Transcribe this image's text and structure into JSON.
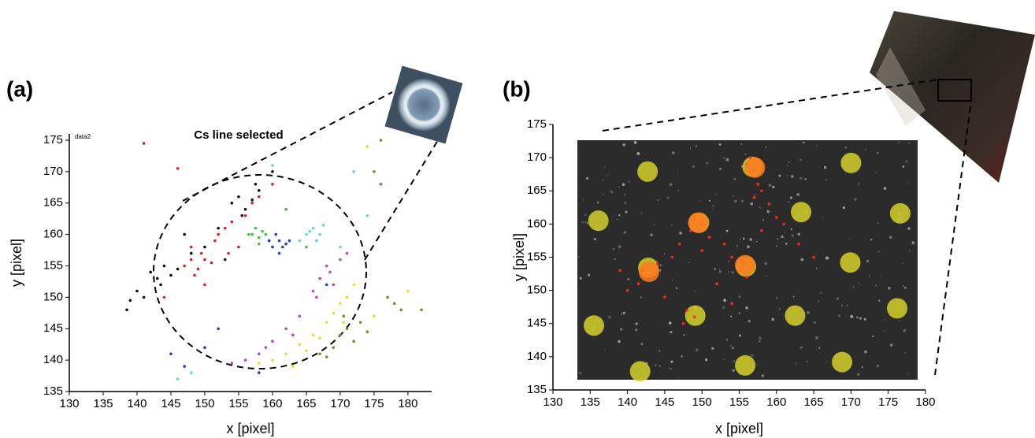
{
  "chart_data": [
    {
      "type": "scatter",
      "label": "(a)",
      "title": "Cs  line selected",
      "annotation": "data2",
      "xlabel": "x [pixel]",
      "ylabel": "y [pixel]",
      "xlim": [
        130,
        183.5
      ],
      "ylim": [
        135,
        176
      ],
      "xticks": [
        130,
        135,
        140,
        145,
        150,
        155,
        160,
        165,
        170,
        175,
        180
      ],
      "yticks": [
        135,
        140,
        145,
        150,
        155,
        160,
        165,
        170,
        175
      ],
      "series": [
        {
          "color": "#111111",
          "marker": "point",
          "x": [
            142,
            143,
            144,
            145,
            146,
            143.5,
            139,
            140,
            141,
            154,
            155,
            156,
            157,
            158,
            155.5,
            157.5,
            150,
            148,
            152,
            147,
            138.5,
            160,
            153
          ],
          "values": [
            154,
            153,
            155,
            153.5,
            154.5,
            152,
            149.5,
            151,
            150,
            165,
            166,
            164,
            165.5,
            167,
            163,
            168,
            158,
            157,
            161,
            160,
            148,
            170,
            156
          ]
        },
        {
          "color": "#e0201c",
          "marker": "point",
          "x": [
            147,
            148,
            149,
            150,
            151,
            149.5,
            148.5,
            152,
            153,
            154,
            151.5,
            156,
            157,
            158,
            141,
            146,
            150,
            160,
            162,
            155,
            144,
            153.5,
            148
          ],
          "values": [
            155,
            156,
            154.5,
            156,
            155.5,
            157,
            153.5,
            160,
            161,
            162,
            159,
            163,
            165,
            166,
            174.5,
            170.5,
            152,
            168,
            164,
            158,
            150,
            157,
            158
          ]
        },
        {
          "color": "#3cc43c",
          "marker": "point",
          "x": [
            157,
            158,
            158.5,
            159,
            157.5,
            158,
            159.5,
            156.5,
            160,
            165,
            162
          ],
          "values": [
            160,
            159.5,
            160.5,
            160,
            161,
            158.5,
            159,
            160,
            158,
            158,
            164
          ]
        },
        {
          "color": "#2a3cc0",
          "marker": "point",
          "x": [
            160,
            161,
            161.5,
            162,
            160.5,
            161,
            162.5,
            159.5,
            145,
            147,
            150,
            152,
            158,
            168
          ],
          "values": [
            158,
            159,
            158,
            158.5,
            160,
            157,
            159,
            159,
            141,
            139,
            142,
            145,
            138,
            152
          ]
        },
        {
          "color": "#5fd6d0",
          "marker": "point",
          "x": [
            165,
            166,
            167,
            166.5,
            165.5,
            167.5,
            164,
            170,
            174,
            148,
            146,
            172,
            160
          ],
          "values": [
            160,
            161,
            160,
            159,
            160.5,
            161.5,
            159,
            158,
            163,
            138,
            137,
            170,
            171
          ]
        },
        {
          "color": "#c23fcf",
          "marker": "point",
          "x": [
            168,
            167,
            169,
            166,
            164,
            162,
            160,
            158,
            156,
            154,
            170,
            166.5,
            163,
            168.5,
            159,
            171,
            176
          ],
          "values": [
            155,
            153,
            152,
            151,
            147,
            145,
            143,
            141,
            140,
            139.5,
            156,
            150,
            144,
            154,
            142,
            157,
            168
          ]
        },
        {
          "color": "#e6e020",
          "marker": "point",
          "x": [
            172,
            171,
            170,
            169,
            168,
            166,
            164,
            162,
            160,
            158,
            167,
            165,
            170.5,
            175,
            180,
            174,
            163
          ],
          "values": [
            152,
            150,
            149,
            147.5,
            146,
            144,
            142.5,
            141,
            140,
            139.5,
            143.5,
            141.5,
            146,
            147,
            151,
            174,
            139
          ]
        },
        {
          "color": "#8a8420",
          "marker": "point",
          "x": [
            170,
            171,
            172,
            169,
            168,
            173,
            174,
            167,
            170.5,
            177,
            178,
            179,
            176,
            182,
            175
          ],
          "values": [
            144,
            145,
            143,
            142,
            140.5,
            146,
            144.5,
            141,
            147,
            150,
            149,
            148,
            175,
            148,
            170
          ]
        }
      ]
    },
    {
      "type": "scatter",
      "label": "(b)",
      "xlabel": "x [pixel]",
      "ylabel": "y [pixel]",
      "xlim": [
        130,
        180
      ],
      "ylim": [
        135,
        175
      ],
      "xticks": [
        130,
        135,
        140,
        145,
        150,
        155,
        160,
        165,
        170,
        175,
        180
      ],
      "yticks": [
        135,
        140,
        145,
        150,
        155,
        160,
        165,
        170,
        175
      ],
      "series": [
        {
          "color": "#d4d02a",
          "marker": "disk",
          "x": [
            142.7,
            156.8,
            170.0,
            176.6,
            136.1,
            149.6,
            163.3,
            142.8,
            155.9,
            169.9,
            135.5,
            149.1,
            162.5,
            176.2,
            141.7,
            155.8,
            168.8
          ],
          "values": [
            167.9,
            168.6,
            169.2,
            161.6,
            160.5,
            160.2,
            161.8,
            153.4,
            153.6,
            154.2,
            144.7,
            146.2,
            146.2,
            147.3,
            137.8,
            138.7,
            139.2
          ]
        },
        {
          "color": "#ff2a10",
          "marker": "point",
          "x": [
            157,
            156.5,
            157.5,
            156,
            158,
            150,
            149,
            148.5,
            151,
            147,
            143,
            142,
            141.5,
            144,
            140,
            155.5,
            156,
            154,
            153,
            146,
            148,
            147.5,
            149,
            152,
            159,
            160,
            158,
            163,
            165,
            145,
            139,
            150,
            154,
            161,
            157
          ],
          "values": [
            168,
            170,
            166,
            169,
            165,
            160,
            161,
            159,
            158,
            157,
            152,
            153,
            151,
            154,
            150,
            154,
            152,
            155,
            157,
            155,
            147,
            145,
            146,
            151,
            163,
            161,
            159,
            157,
            155,
            149,
            153,
            156,
            148,
            160,
            164
          ]
        },
        {
          "color": "#ff7a20",
          "marker": "disk",
          "x": [
            157.1,
            149.5,
            142.9,
            155.8
          ],
          "values": [
            168.5,
            160.2,
            152.8,
            153.8
          ]
        }
      ]
    }
  ]
}
